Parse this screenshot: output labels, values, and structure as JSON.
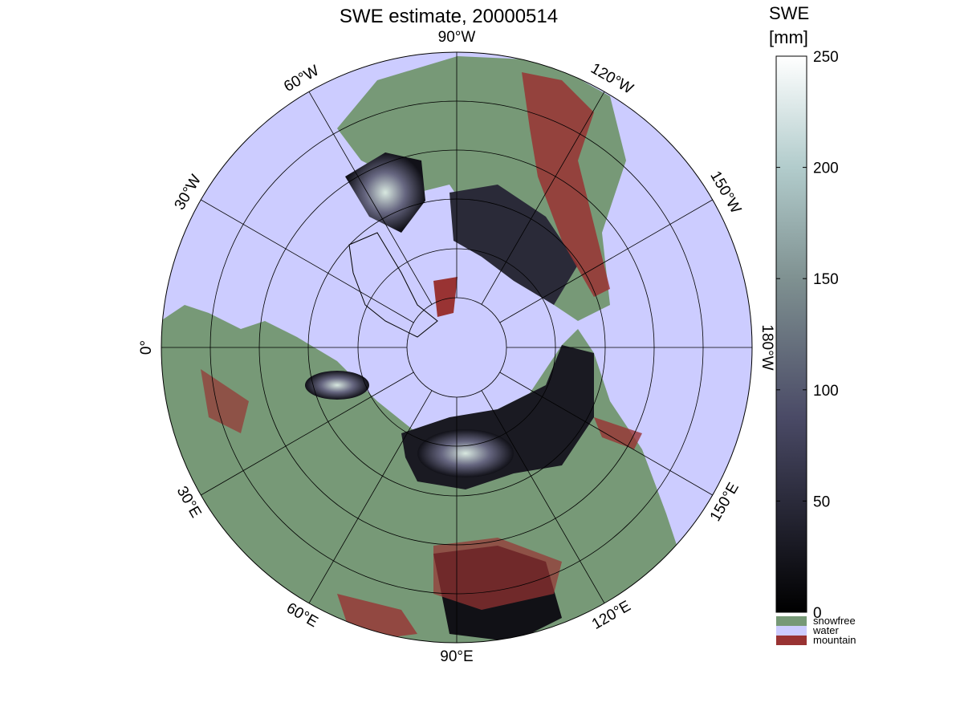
{
  "title": "SWE estimate, 20000514",
  "map": {
    "meridian_labels": [
      "90°W",
      "120°W",
      "150°W",
      "180°W",
      "150°E",
      "120°E",
      "90°E",
      "60°E",
      "30°E",
      "0°",
      "30°W",
      "60°W"
    ]
  },
  "colorbar": {
    "title": [
      "SWE",
      "[mm]"
    ],
    "lim": [
      0,
      250
    ],
    "ticks": [
      0,
      50,
      100,
      150,
      200,
      250
    ]
  },
  "legend": [
    {
      "name": "snowfree",
      "color": "#779977"
    },
    {
      "name": "water",
      "color": "#ccccff"
    },
    {
      "name": "mountain",
      "color": "#993333"
    }
  ]
}
